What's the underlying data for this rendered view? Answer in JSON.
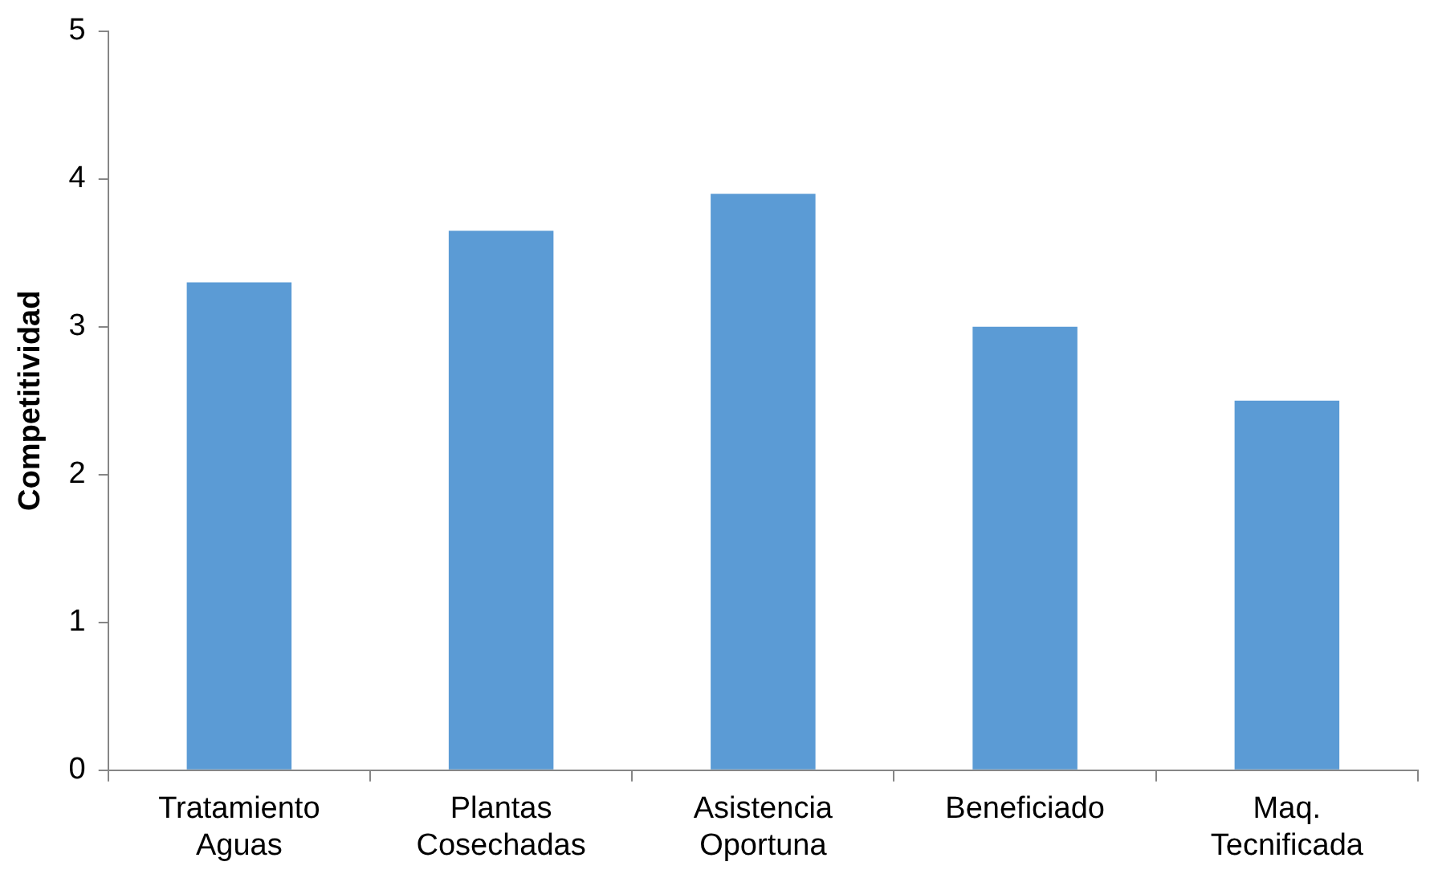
{
  "chart_data": {
    "type": "bar",
    "ylabel": "Competitividad",
    "categories": [
      "Tratamiento Aguas",
      "Plantas Cosechadas",
      "Asistencia Oportuna",
      "Beneficiado",
      "Maq. Tecnificada"
    ],
    "values": [
      3.3,
      3.65,
      3.9,
      3.0,
      2.5
    ],
    "color": "#5b9bd5",
    "ylim": [
      0,
      5
    ],
    "yticks": [
      0,
      1,
      2,
      3,
      4,
      5
    ],
    "grid": false
  }
}
